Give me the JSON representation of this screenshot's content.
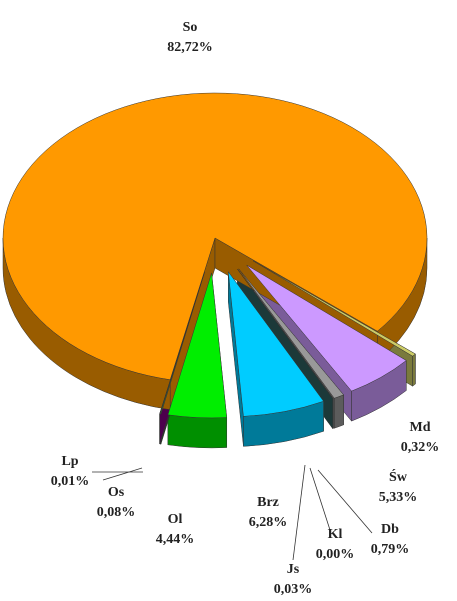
{
  "chart_data": {
    "type": "pie",
    "categories": [
      "Md",
      "Św",
      "Db",
      "Kl",
      "Js",
      "Brz",
      "Ol",
      "Os",
      "Lp",
      "So"
    ],
    "values": [
      0.32,
      5.33,
      0.79,
      0.0,
      0.03,
      6.28,
      4.44,
      0.08,
      0.01,
      82.72
    ],
    "value_labels": [
      "0,32%",
      "5,33%",
      "0,79%",
      "0,00%",
      "0,03%",
      "6,28%",
      "4,44%",
      "0,08%",
      "0,01%",
      "82,72%"
    ],
    "colors": [
      "#cccc66",
      "#cc99ff",
      "#999999",
      "#aaaaaa",
      "#2f5f5f",
      "#00ccff",
      "#00ee00",
      "#336633",
      "#800080",
      "#ff9900"
    ]
  }
}
